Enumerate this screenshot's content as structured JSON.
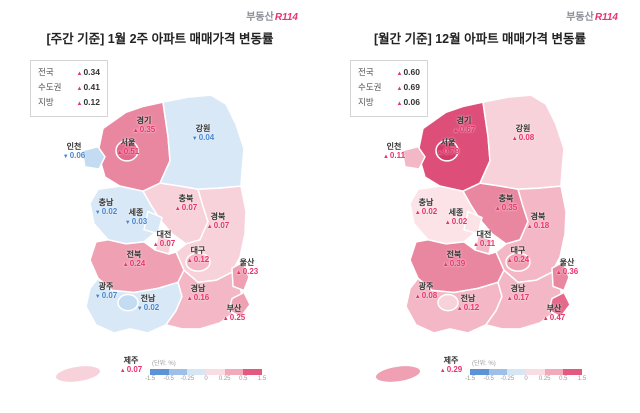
{
  "brand": {
    "gray": "부동산",
    "red": "R114"
  },
  "legend": {
    "unit": "(단위: %)",
    "ticks": [
      "-1.5",
      "-0.5",
      "-0.25",
      "0",
      "0.25",
      "0.5",
      "1.5"
    ],
    "segment_colors": [
      "#5b93d5",
      "#9cc0e8",
      "#d6e6f5",
      "#f9dde3",
      "#f2a9bb",
      "#e35a81"
    ]
  },
  "colors": {
    "up": "#e8336d",
    "down": "#4a86cf"
  },
  "panels": [
    {
      "title": "[주간 기준] 1월 2주 아파트 매매가격 변동률",
      "summary": [
        {
          "label": "전국",
          "dir": "up",
          "value": "0.34"
        },
        {
          "label": "수도권",
          "dir": "up",
          "value": "0.41"
        },
        {
          "label": "지방",
          "dir": "up",
          "value": "0.12"
        }
      ],
      "regions": [
        {
          "key": "gyeonggi",
          "name": "경기",
          "dir": "up",
          "value": "0.35"
        },
        {
          "key": "gangwon",
          "name": "강원",
          "dir": "down",
          "value": "0.04"
        },
        {
          "key": "incheon",
          "name": "인천",
          "dir": "down",
          "value": "0.06"
        },
        {
          "key": "seoul",
          "name": "서울",
          "dir": "up",
          "value": "0.51"
        },
        {
          "key": "chungbuk",
          "name": "충북",
          "dir": "up",
          "value": "0.07"
        },
        {
          "key": "chungnam",
          "name": "충남",
          "dir": "down",
          "value": "0.02"
        },
        {
          "key": "sejong",
          "name": "세종",
          "dir": "down",
          "value": "0.03"
        },
        {
          "key": "daejeon",
          "name": "대전",
          "dir": "up",
          "value": "0.07"
        },
        {
          "key": "gyeongbuk",
          "name": "경북",
          "dir": "up",
          "value": "0.07"
        },
        {
          "key": "jeonbuk",
          "name": "전북",
          "dir": "up",
          "value": "0.24"
        },
        {
          "key": "daegu",
          "name": "대구",
          "dir": "up",
          "value": "0.12"
        },
        {
          "key": "ulsan",
          "name": "울산",
          "dir": "up",
          "value": "0.23"
        },
        {
          "key": "gyeongnam",
          "name": "경남",
          "dir": "up",
          "value": "0.16"
        },
        {
          "key": "busan",
          "name": "부산",
          "dir": "up",
          "value": "0.25"
        },
        {
          "key": "gwangju",
          "name": "광주",
          "dir": "down",
          "value": "0.07"
        },
        {
          "key": "jeonnam",
          "name": "전남",
          "dir": "down",
          "value": "0.02"
        },
        {
          "key": "jeju",
          "name": "제주",
          "dir": "up",
          "value": "0.07"
        }
      ]
    },
    {
      "title": "[월간 기준] 12월 아파트 매매가격 변동률",
      "summary": [
        {
          "label": "전국",
          "dir": "up",
          "value": "0.60"
        },
        {
          "label": "수도권",
          "dir": "up",
          "value": "0.69"
        },
        {
          "label": "지방",
          "dir": "up",
          "value": "0.06"
        }
      ],
      "regions": [
        {
          "key": "gyeonggi",
          "name": "경기",
          "dir": "up",
          "value": "0.67"
        },
        {
          "key": "gangwon",
          "name": "강원",
          "dir": "up",
          "value": "0.08"
        },
        {
          "key": "incheon",
          "name": "인천",
          "dir": "up",
          "value": "0.11"
        },
        {
          "key": "seoul",
          "name": "서울",
          "dir": "up",
          "value": "0.79"
        },
        {
          "key": "chungbuk",
          "name": "충북",
          "dir": "up",
          "value": "0.35"
        },
        {
          "key": "chungnam",
          "name": "충남",
          "dir": "up",
          "value": "0.02"
        },
        {
          "key": "sejong",
          "name": "세종",
          "dir": "up",
          "value": "0.02"
        },
        {
          "key": "daejeon",
          "name": "대전",
          "dir": "up",
          "value": "0.11"
        },
        {
          "key": "gyeongbuk",
          "name": "경북",
          "dir": "up",
          "value": "0.18"
        },
        {
          "key": "jeonbuk",
          "name": "전북",
          "dir": "up",
          "value": "0.39"
        },
        {
          "key": "daegu",
          "name": "대구",
          "dir": "up",
          "value": "0.24"
        },
        {
          "key": "ulsan",
          "name": "울산",
          "dir": "up",
          "value": "0.36"
        },
        {
          "key": "gyeongnam",
          "name": "경남",
          "dir": "up",
          "value": "0.17"
        },
        {
          "key": "busan",
          "name": "부산",
          "dir": "up",
          "value": "0.47"
        },
        {
          "key": "gwangju",
          "name": "광주",
          "dir": "up",
          "value": "0.08"
        },
        {
          "key": "jeonnam",
          "name": "전남",
          "dir": "up",
          "value": "0.12"
        },
        {
          "key": "jeju",
          "name": "제주",
          "dir": "up",
          "value": "0.29"
        }
      ]
    }
  ],
  "chart_data": [
    {
      "type": "heatmap",
      "subtype": "choropleth-korea",
      "title": "[주간 기준] 1월 2주 아파트 매매가격 변동률",
      "unit": "%",
      "summary": {
        "전국": 0.34,
        "수도권": 0.41,
        "지방": 0.12
      },
      "categories": [
        "서울",
        "경기",
        "인천",
        "강원",
        "충북",
        "충남",
        "세종",
        "대전",
        "경북",
        "전북",
        "대구",
        "울산",
        "경남",
        "부산",
        "광주",
        "전남",
        "제주"
      ],
      "values": [
        0.51,
        0.35,
        -0.06,
        -0.04,
        0.07,
        -0.02,
        -0.03,
        0.07,
        0.07,
        0.24,
        0.12,
        0.23,
        0.16,
        0.25,
        -0.07,
        -0.02,
        0.07
      ],
      "scale": {
        "min": -1.5,
        "max": 1.5,
        "ticks": [
          -1.5,
          -0.5,
          -0.25,
          0,
          0.25,
          0.5,
          1.5
        ],
        "negative_color": "blue",
        "positive_color": "red"
      }
    },
    {
      "type": "heatmap",
      "subtype": "choropleth-korea",
      "title": "[월간 기준] 12월 아파트 매매가격 변동률",
      "unit": "%",
      "summary": {
        "전국": 0.6,
        "수도권": 0.69,
        "지방": 0.06
      },
      "categories": [
        "서울",
        "경기",
        "인천",
        "강원",
        "충북",
        "충남",
        "세종",
        "대전",
        "경북",
        "전북",
        "대구",
        "울산",
        "경남",
        "부산",
        "광주",
        "전남",
        "제주"
      ],
      "values": [
        0.79,
        0.67,
        0.11,
        0.08,
        0.35,
        0.02,
        0.02,
        0.11,
        0.18,
        0.39,
        0.24,
        0.36,
        0.17,
        0.47,
        0.08,
        0.12,
        0.29
      ],
      "scale": {
        "min": -1.5,
        "max": 1.5,
        "ticks": [
          -1.5,
          -0.5,
          -0.25,
          0,
          0.25,
          0.5,
          1.5
        ],
        "negative_color": "blue",
        "positive_color": "red"
      }
    }
  ]
}
